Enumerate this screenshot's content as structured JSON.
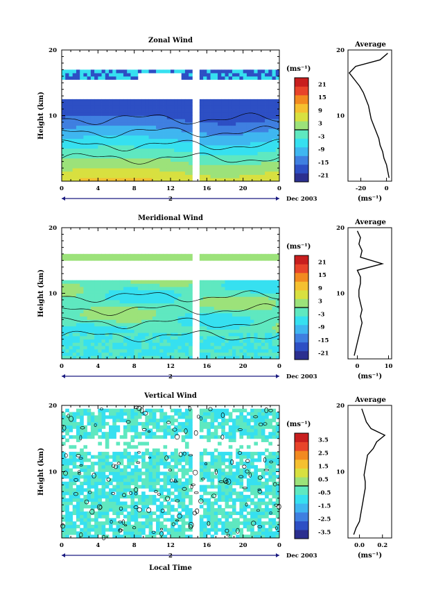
{
  "chart_data": [
    {
      "type": "heatmap",
      "title": "Zonal Wind",
      "ylabel": "Height (km)",
      "xlabel": "",
      "ylim": [
        0,
        20
      ],
      "y_ticks": [
        20,
        10
      ],
      "x_ticks": [
        "0",
        "4",
        "8",
        "12",
        "16",
        "20",
        "0"
      ],
      "date_marker": "2",
      "date_label": "Dec 2003",
      "colorbar": {
        "unit_label": "(ms⁻¹)",
        "tick_labels": [
          "21",
          "15",
          "9",
          "3",
          "-3",
          "-9",
          "-15",
          "-21"
        ]
      },
      "profile": {
        "title": "Average",
        "y_ticks": [
          "20",
          "10"
        ],
        "x_ticks": [
          "-20",
          "0"
        ],
        "xlim": [
          -30,
          4
        ],
        "xlabel": "(ms⁻¹)",
        "heights_km": [
          0.5,
          1.5,
          2.5,
          3.5,
          4.5,
          5.5,
          6.5,
          7.5,
          8.5,
          9.5,
          10.5,
          11.5,
          12.5,
          13.5,
          14.5,
          15.5,
          16.5,
          17.5,
          18.5,
          19.5
        ],
        "values": [
          2,
          1,
          0,
          -2,
          -3,
          -5,
          -6,
          -8,
          -10,
          -12,
          -13,
          -14,
          -16,
          -18,
          -21,
          -25,
          -29,
          -24,
          -5,
          1
        ]
      }
    },
    {
      "type": "heatmap",
      "title": "Meridional Wind",
      "ylabel": "Height (km)",
      "xlabel": "",
      "ylim": [
        0,
        20
      ],
      "y_ticks": [
        20,
        10
      ],
      "x_ticks": [
        "0",
        "4",
        "8",
        "12",
        "16",
        "20",
        "0"
      ],
      "date_marker": "2",
      "date_label": "Dec 2003",
      "colorbar": {
        "unit_label": "(ms⁻¹)",
        "tick_labels": [
          "21",
          "15",
          "9",
          "3",
          "-3",
          "-9",
          "-15",
          "-21"
        ]
      },
      "profile": {
        "title": "Average",
        "y_ticks": [
          "20",
          "10"
        ],
        "x_ticks": [
          "0",
          "10"
        ],
        "xlim": [
          -3,
          11
        ],
        "xlabel": "(ms⁻¹)",
        "heights_km": [
          0.5,
          1.5,
          2.5,
          3.5,
          4.5,
          5.5,
          6.5,
          7.5,
          8.5,
          9.5,
          10.5,
          11.5,
          12.5,
          13.5,
          14.5,
          15.5,
          16.5,
          17.5,
          18.5,
          19.5
        ],
        "values": [
          -1,
          -0.5,
          0,
          0.5,
          1,
          1.5,
          1,
          1.5,
          1,
          0.5,
          0.5,
          1,
          1,
          0,
          8,
          1,
          1.5,
          0.5,
          1,
          0
        ]
      }
    },
    {
      "type": "heatmap",
      "title": "Vertical Wind",
      "ylabel": "Height (km)",
      "xlabel": "Local Time",
      "ylim": [
        0,
        20
      ],
      "y_ticks": [
        20,
        10
      ],
      "x_ticks": [
        "0",
        "4",
        "8",
        "12",
        "16",
        "20",
        "0"
      ],
      "date_marker": "2",
      "date_label": "Dec 2003",
      "colorbar": {
        "unit_label": "(ms⁻¹)",
        "tick_labels": [
          "3.5",
          "2.5",
          "1.5",
          "0.5",
          "-0.5",
          "-1.5",
          "-2.5",
          "-3.5"
        ]
      },
      "profile": {
        "title": "Average",
        "y_ticks": [
          "20",
          "10"
        ],
        "x_ticks": [
          "0.0",
          "0.2"
        ],
        "xlim": [
          -0.1,
          0.28
        ],
        "xlabel": "(ms⁻¹)",
        "heights_km": [
          0.5,
          1.5,
          2.5,
          3.5,
          4.5,
          5.5,
          6.5,
          7.5,
          8.5,
          9.5,
          10.5,
          11.5,
          12.5,
          13.5,
          14.5,
          15.5,
          16.5,
          17.5,
          18.5,
          19.5
        ],
        "values": [
          -0.05,
          -0.03,
          0,
          0.01,
          0.02,
          0.03,
          0.04,
          0.05,
          0.05,
          0.04,
          0.05,
          0.06,
          0.07,
          0.12,
          0.15,
          0.22,
          0.1,
          0.06,
          0.04,
          0.02
        ]
      }
    }
  ],
  "colors": {
    "scale": [
      "#2b2f8f",
      "#2d4fc4",
      "#3f7fe0",
      "#3fb6f0",
      "#36e0f0",
      "#5fe8c0",
      "#9ce27a",
      "#d8e040",
      "#f5c030",
      "#f28a20",
      "#e8442a",
      "#c81e1e"
    ],
    "missing": "#ffffff",
    "axis": "#000000",
    "date_bar": "#1a1a80"
  }
}
